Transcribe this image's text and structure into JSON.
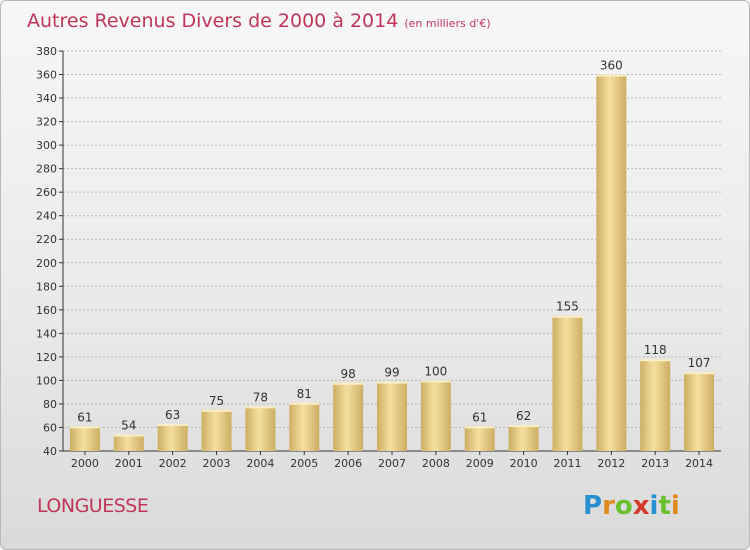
{
  "title": "Autres Revenus Divers de 2000 à 2014",
  "subtitle": "(en milliers d'€)",
  "place": "LONGUESSE",
  "logo": [
    "P",
    "r",
    "o",
    "x",
    "i",
    "t",
    "i"
  ],
  "colors": {
    "title": "#c0365a",
    "bar_light": "#f5dfa0",
    "bar_dark": "#cdae62",
    "grid": "#b9b9b9",
    "axis": "#333333"
  },
  "chart_data": {
    "type": "bar",
    "title": "Autres Revenus Divers de 2000 à 2014",
    "subtitle": "(en milliers d'€)",
    "xlabel": "",
    "ylabel": "",
    "categories": [
      "2000",
      "2001",
      "2002",
      "2003",
      "2004",
      "2005",
      "2006",
      "2007",
      "2008",
      "2009",
      "2010",
      "2011",
      "2012",
      "2013",
      "2014"
    ],
    "values": [
      61,
      54,
      63,
      75,
      78,
      81,
      98,
      99,
      100,
      61,
      62,
      155,
      360,
      118,
      107
    ],
    "data_labels": [
      "61",
      "54",
      "63",
      "75",
      "78",
      "81",
      "98",
      "99",
      "100",
      "61",
      "62",
      "155",
      "360",
      "118",
      "107"
    ],
    "ylim": [
      40,
      380
    ],
    "yticks": [
      40,
      60,
      80,
      100,
      120,
      140,
      160,
      180,
      200,
      220,
      240,
      260,
      280,
      300,
      320,
      340,
      360,
      380
    ],
    "grid": true,
    "legend": "none"
  }
}
